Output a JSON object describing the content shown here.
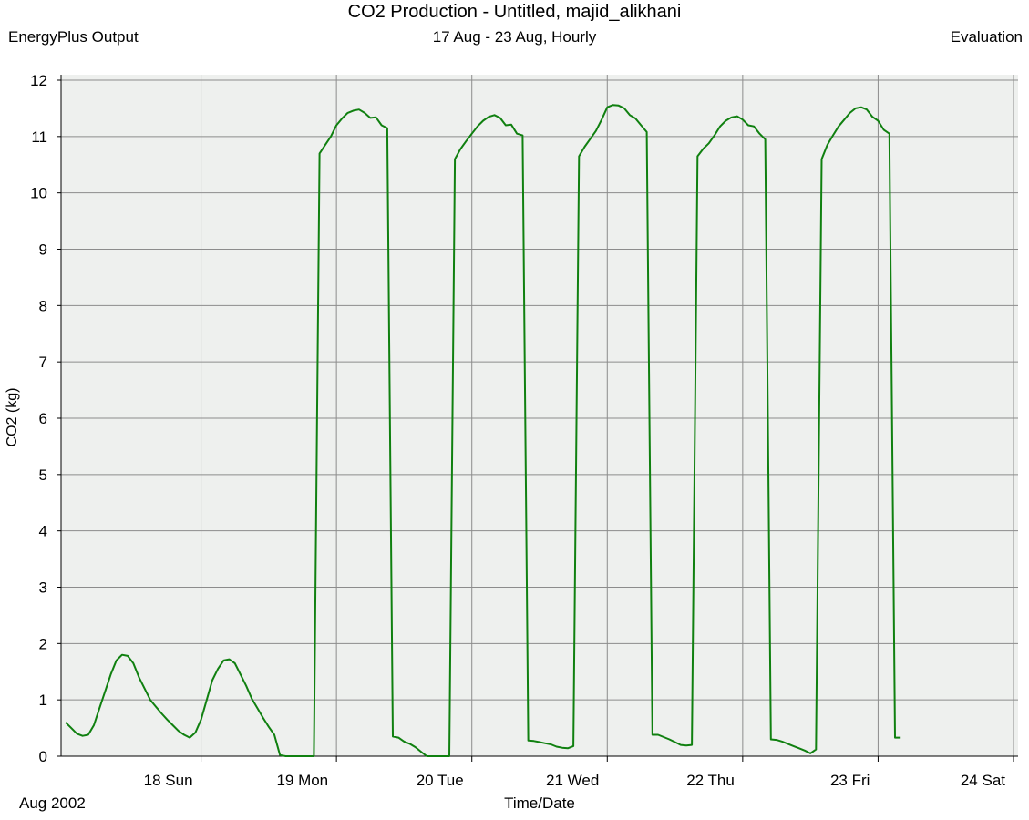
{
  "header": {
    "title": "CO2 Production - Untitled, majid_alikhani",
    "subtitle": "17 Aug - 23 Aug, Hourly",
    "left_caption": "EnergyPlus Output",
    "right_caption": "Evaluation"
  },
  "chart_data": {
    "type": "line",
    "title": "CO2 Production - Untitled, majid_alikhani",
    "subtitle": "17 Aug - 23 Aug, Hourly",
    "xlabel": "Time/Date",
    "ylabel": "CO2 (kg)",
    "month_label": "Aug 2002",
    "ylim": [
      0,
      12
    ],
    "xlim_hours": [
      0,
      168
    ],
    "y_ticks": [
      0,
      1,
      2,
      3,
      4,
      5,
      6,
      7,
      8,
      9,
      10,
      11,
      12
    ],
    "x_ticks": [
      {
        "hour": 24,
        "label": "18 Sun"
      },
      {
        "hour": 48,
        "label": "19 Mon"
      },
      {
        "hour": 72,
        "label": "20 Tue"
      },
      {
        "hour": 96,
        "label": "21 Wed"
      },
      {
        "hour": 120,
        "label": "22 Thu"
      },
      {
        "hour": 144,
        "label": "23 Fri"
      },
      {
        "hour": 168,
        "label": "24 Sat"
      }
    ],
    "grid": true,
    "colors": {
      "line": "#108010",
      "plot_background": "#eef0ee",
      "grid": "#8c8c8c"
    },
    "series": [
      {
        "values": [
          0.6,
          0.5,
          0.4,
          0.36,
          0.38,
          0.55,
          0.85,
          1.15,
          1.45,
          1.7,
          1.8,
          1.78,
          1.65,
          1.4,
          1.2,
          1.0,
          0.88,
          0.76,
          0.65,
          0.55,
          0.45,
          0.38,
          0.33,
          0.42,
          0.65,
          1.0,
          1.35,
          1.55,
          1.7,
          1.72,
          1.65,
          1.45,
          1.25,
          1.02,
          0.85,
          0.68,
          0.52,
          0.38,
          0.02,
          0.0,
          0.0,
          0.0,
          0.0,
          0.0,
          0.0,
          10.7,
          10.85,
          11.0,
          11.2,
          11.32,
          11.42,
          11.46,
          11.48,
          11.42,
          11.33,
          11.34,
          11.2,
          11.15,
          0.35,
          0.33,
          0.26,
          0.22,
          0.16,
          0.08,
          0.0,
          0.0,
          0.0,
          0.0,
          0.0,
          10.6,
          10.78,
          10.92,
          11.05,
          11.18,
          11.28,
          11.35,
          11.38,
          11.33,
          11.2,
          11.21,
          11.05,
          11.02,
          0.28,
          0.27,
          0.25,
          0.23,
          0.21,
          0.17,
          0.15,
          0.14,
          0.18,
          10.65,
          10.82,
          10.96,
          11.1,
          11.3,
          11.52,
          11.56,
          11.55,
          11.5,
          11.38,
          11.32,
          11.2,
          11.08,
          0.38,
          0.38,
          0.34,
          0.3,
          0.25,
          0.2,
          0.19,
          0.2,
          10.65,
          10.78,
          10.88,
          11.02,
          11.18,
          11.28,
          11.34,
          11.36,
          11.3,
          11.2,
          11.18,
          11.05,
          10.95,
          0.3,
          0.29,
          0.26,
          0.22,
          0.18,
          0.14,
          0.1,
          0.05,
          0.12,
          10.6,
          10.85,
          11.02,
          11.18,
          11.3,
          11.42,
          11.5,
          11.52,
          11.48,
          11.35,
          11.28,
          11.12,
          11.05,
          0.33,
          0.33
        ]
      }
    ]
  }
}
